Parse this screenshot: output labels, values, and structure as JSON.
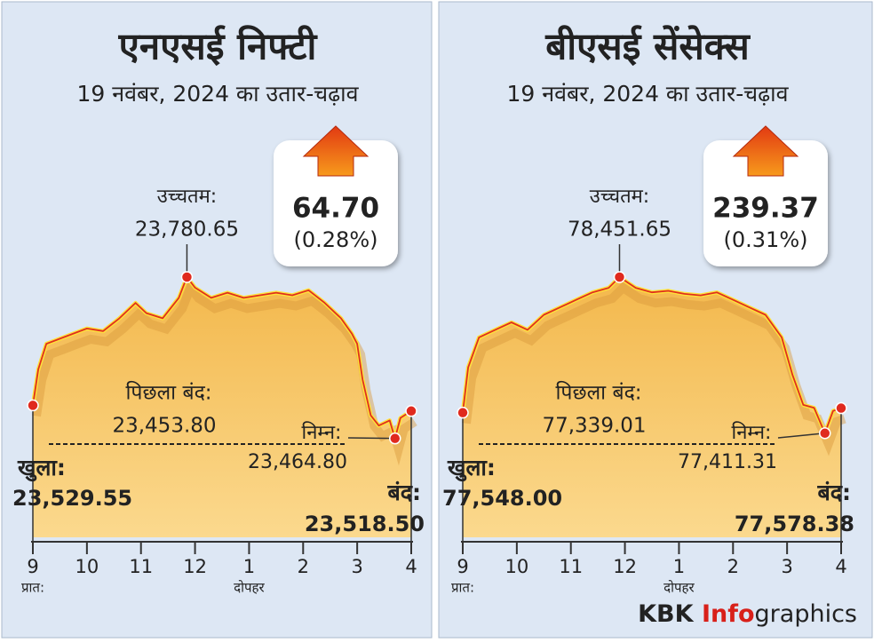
{
  "chart_data": [
    {
      "type": "line",
      "title": "एनएसई निफ्टी",
      "subtitle": "19 नवंबर, 2024 का उतार-चढ़ाव",
      "change": {
        "value": 64.7,
        "label": "64.70"
      },
      "change_pct": {
        "value": 0.28,
        "label": "(0.28%)"
      },
      "xlim": [
        9,
        16
      ],
      "xticks": [
        9,
        10,
        11,
        12,
        {
          "value": 13,
          "label": "1"
        },
        {
          "value": 14,
          "label": "2"
        },
        {
          "value": 15,
          "label": "3"
        },
        {
          "value": 16,
          "label": "4"
        }
      ],
      "xtick_notes": [
        {
          "value": 9,
          "label": "प्रात:"
        },
        {
          "value": 13,
          "label": "दोपहर"
        }
      ],
      "series": [
        {
          "color": "#e0301e",
          "x": [
            9.0,
            9.1,
            9.25,
            9.5,
            9.75,
            10.0,
            10.3,
            10.6,
            10.9,
            11.1,
            11.4,
            11.7,
            11.85,
            12.0,
            12.3,
            12.6,
            12.9,
            13.2,
            13.5,
            13.8,
            14.1,
            14.4,
            14.7,
            14.9,
            15.0,
            15.1,
            15.25,
            15.4,
            15.6,
            15.7,
            15.8,
            16.0
          ],
          "values": [
            23529.55,
            23600,
            23650,
            23660,
            23670,
            23680,
            23675,
            23700,
            23730,
            23710,
            23700,
            23740,
            23780.65,
            23760,
            23740,
            23750,
            23740,
            23745,
            23750,
            23745,
            23755,
            23730,
            23700,
            23670,
            23650,
            23580,
            23510,
            23490,
            23500,
            23464.8,
            23505,
            23518.5
          ]
        }
      ],
      "high": {
        "label": "उच्चतम:",
        "x": 11.85,
        "value": 23780.65,
        "value_label": "23,780.65"
      },
      "prev_close": {
        "label": "पिछला बंद:",
        "value": 23453.8,
        "value_label": "23,453.80"
      },
      "low": {
        "label": "निम्न:",
        "x": 15.7,
        "value": 23464.8,
        "value_label": "23,464.80"
      },
      "open": {
        "label": "खुला:",
        "x": 9,
        "value": 23529.55,
        "value_label": "23,529.55"
      },
      "close": {
        "label": "बंद:",
        "x": 16,
        "value": 23518.5,
        "value_label": "23,518.50"
      }
    },
    {
      "type": "line",
      "title": "बीएसई सेंसेक्स",
      "subtitle": "19 नवंबर, 2024 का उतार-चढ़ाव",
      "change": {
        "value": 239.37,
        "label": "239.37"
      },
      "change_pct": {
        "value": 0.31,
        "label": "(0.31%)"
      },
      "xlim": [
        9,
        16
      ],
      "xticks": [
        9,
        10,
        11,
        12,
        {
          "value": 13,
          "label": "1"
        },
        {
          "value": 14,
          "label": "2"
        },
        {
          "value": 15,
          "label": "3"
        },
        {
          "value": 16,
          "label": "4"
        }
      ],
      "xtick_notes": [
        {
          "value": 9,
          "label": "प्रात:"
        },
        {
          "value": 13,
          "label": "दोपहर"
        }
      ],
      "series": [
        {
          "color": "#e0301e",
          "x": [
            9.0,
            9.1,
            9.3,
            9.6,
            9.9,
            10.2,
            10.5,
            10.8,
            11.1,
            11.4,
            11.7,
            11.9,
            12.2,
            12.5,
            12.8,
            13.1,
            13.4,
            13.7,
            14.0,
            14.3,
            14.6,
            14.9,
            15.1,
            15.3,
            15.5,
            15.7,
            15.85,
            16.0
          ],
          "values": [
            77548.0,
            77850,
            78050,
            78100,
            78150,
            78100,
            78200,
            78250,
            78300,
            78350,
            78380,
            78451.65,
            78380,
            78350,
            78360,
            78340,
            78330,
            78350,
            78300,
            78250,
            78200,
            78050,
            77800,
            77600,
            77580,
            77411.31,
            77560,
            77578.38
          ]
        }
      ],
      "high": {
        "label": "उच्चतम:",
        "x": 11.9,
        "value": 78451.65,
        "value_label": "78,451.65"
      },
      "prev_close": {
        "label": "पिछला बंद:",
        "value": 77339.01,
        "value_label": "77,339.01"
      },
      "low": {
        "label": "निम्न:",
        "x": 15.7,
        "value": 77411.31,
        "value_label": "77,411.31"
      },
      "open": {
        "label": "खुला:",
        "x": 9,
        "value": 77548.0,
        "value_label": "77,548.00"
      },
      "close": {
        "label": "बंद:",
        "x": 16,
        "value": 77578.38,
        "value_label": "77,578.38"
      }
    }
  ],
  "footer": {
    "brand": "KBK",
    "highlight": "Info",
    "rest": "graphics"
  }
}
